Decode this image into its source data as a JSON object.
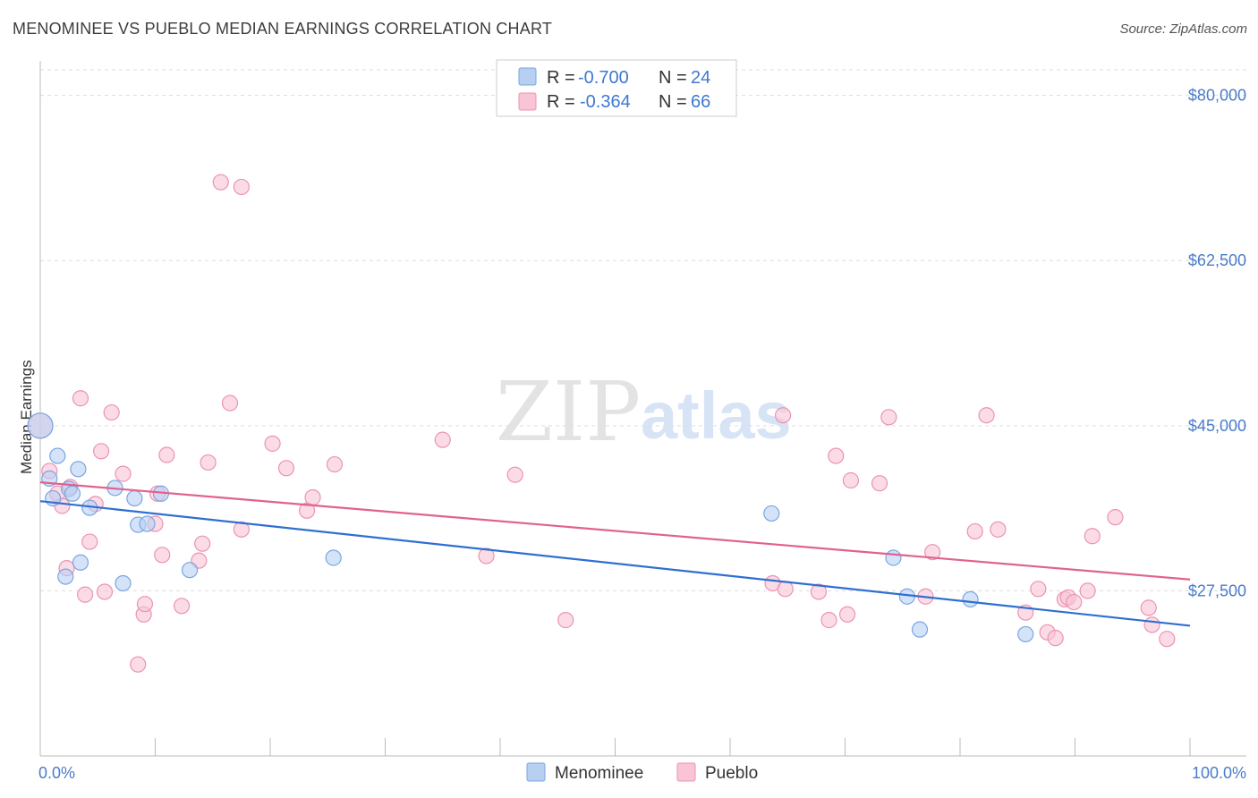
{
  "header": {
    "title": "MENOMINEE VS PUEBLO MEDIAN EARNINGS CORRELATION CHART",
    "source": "Source: ZipAtlas.com"
  },
  "watermark": {
    "zip": "ZIP",
    "atlas": "atlas"
  },
  "legend": {
    "rows": [
      {
        "r_label": "R =",
        "r_value": "-0.700",
        "n_label": "N =",
        "n_value": "24"
      },
      {
        "r_label": "R =",
        "r_value": "-0.364",
        "n_label": "N =",
        "n_value": "66"
      }
    ]
  },
  "bottom_legend": {
    "menominee": "Menominee",
    "pueblo": "Pueblo"
  },
  "colors": {
    "menominee_fill": "#b7d0f2",
    "menominee_stroke": "#7aa6e3",
    "menominee_line": "#2f6fd1",
    "pueblo_fill": "#f9c4d6",
    "pueblo_stroke": "#ec93b1",
    "pueblo_line": "#e0628d",
    "tick_text": "#4a7cc9",
    "grid": "#dddddd"
  },
  "chart_data": {
    "type": "scatter",
    "title": "MENOMINEE VS PUEBLO MEDIAN EARNINGS CORRELATION CHART",
    "xlabel": "",
    "ylabel": "Median Earnings",
    "xlim": [
      0,
      100
    ],
    "ylim": [
      10000,
      83000
    ],
    "x_tick_labels": [
      "0.0%",
      "100.0%"
    ],
    "y_ticks": [
      27500,
      45000,
      62500,
      80000
    ],
    "y_tick_labels": [
      "$27,500",
      "$45,000",
      "$62,500",
      "$80,000"
    ],
    "grid": true,
    "series": [
      {
        "name": "Menominee",
        "r": -0.7,
        "n": 24,
        "trend": {
          "x": [
            0,
            100
          ],
          "y": [
            37000,
            23800
          ]
        },
        "points": [
          {
            "x": 0.0,
            "y": 45000,
            "big": true
          },
          {
            "x": 0.8,
            "y": 39400
          },
          {
            "x": 1.1,
            "y": 37300
          },
          {
            "x": 1.5,
            "y": 41800
          },
          {
            "x": 2.2,
            "y": 29000
          },
          {
            "x": 2.5,
            "y": 38300
          },
          {
            "x": 2.8,
            "y": 37800
          },
          {
            "x": 3.3,
            "y": 40400
          },
          {
            "x": 3.5,
            "y": 30500
          },
          {
            "x": 4.3,
            "y": 36300
          },
          {
            "x": 6.5,
            "y": 38400
          },
          {
            "x": 7.2,
            "y": 28300
          },
          {
            "x": 8.2,
            "y": 37300
          },
          {
            "x": 8.5,
            "y": 34500
          },
          {
            "x": 9.3,
            "y": 34600
          },
          {
            "x": 10.5,
            "y": 37800
          },
          {
            "x": 13.0,
            "y": 29700
          },
          {
            "x": 25.5,
            "y": 31000
          },
          {
            "x": 63.6,
            "y": 35700
          },
          {
            "x": 74.2,
            "y": 31000
          },
          {
            "x": 75.4,
            "y": 26900
          },
          {
            "x": 76.5,
            "y": 23400
          },
          {
            "x": 80.9,
            "y": 26600
          },
          {
            "x": 85.7,
            "y": 22900
          }
        ]
      },
      {
        "name": "Pueblo",
        "r": -0.364,
        "n": 66,
        "trend": {
          "x": [
            0,
            100
          ],
          "y": [
            39000,
            28700
          ]
        },
        "points": [
          {
            "x": 0.0,
            "y": 45000,
            "big": true
          },
          {
            "x": 0.8,
            "y": 40200
          },
          {
            "x": 1.5,
            "y": 37800
          },
          {
            "x": 1.9,
            "y": 36500
          },
          {
            "x": 2.3,
            "y": 29900
          },
          {
            "x": 2.6,
            "y": 38500
          },
          {
            "x": 3.5,
            "y": 47900
          },
          {
            "x": 3.9,
            "y": 27100
          },
          {
            "x": 4.3,
            "y": 32700
          },
          {
            "x": 4.8,
            "y": 36700
          },
          {
            "x": 5.3,
            "y": 42300
          },
          {
            "x": 5.6,
            "y": 27400
          },
          {
            "x": 6.2,
            "y": 46400
          },
          {
            "x": 7.2,
            "y": 39900
          },
          {
            "x": 8.5,
            "y": 19700
          },
          {
            "x": 9.0,
            "y": 25000
          },
          {
            "x": 9.1,
            "y": 26100
          },
          {
            "x": 10.0,
            "y": 34600
          },
          {
            "x": 10.2,
            "y": 37800
          },
          {
            "x": 10.6,
            "y": 31300
          },
          {
            "x": 11.0,
            "y": 41900
          },
          {
            "x": 12.3,
            "y": 25900
          },
          {
            "x": 13.8,
            "y": 30700
          },
          {
            "x": 14.1,
            "y": 32500
          },
          {
            "x": 14.6,
            "y": 41100
          },
          {
            "x": 15.7,
            "y": 70800
          },
          {
            "x": 16.5,
            "y": 47400
          },
          {
            "x": 17.5,
            "y": 70300
          },
          {
            "x": 17.5,
            "y": 34000
          },
          {
            "x": 20.2,
            "y": 43100
          },
          {
            "x": 21.4,
            "y": 40500
          },
          {
            "x": 23.2,
            "y": 36000
          },
          {
            "x": 23.7,
            "y": 37400
          },
          {
            "x": 25.6,
            "y": 40900
          },
          {
            "x": 35.0,
            "y": 43500
          },
          {
            "x": 38.8,
            "y": 31200
          },
          {
            "x": 41.3,
            "y": 39800
          },
          {
            "x": 45.7,
            "y": 24400
          },
          {
            "x": 63.7,
            "y": 28300
          },
          {
            "x": 64.6,
            "y": 46100
          },
          {
            "x": 64.8,
            "y": 27700
          },
          {
            "x": 67.7,
            "y": 27400
          },
          {
            "x": 68.6,
            "y": 24400
          },
          {
            "x": 69.2,
            "y": 41800
          },
          {
            "x": 70.2,
            "y": 25000
          },
          {
            "x": 70.5,
            "y": 39200
          },
          {
            "x": 73.0,
            "y": 38900
          },
          {
            "x": 73.8,
            "y": 45900
          },
          {
            "x": 77.0,
            "y": 26900
          },
          {
            "x": 77.6,
            "y": 31600
          },
          {
            "x": 81.3,
            "y": 33800
          },
          {
            "x": 82.3,
            "y": 46100
          },
          {
            "x": 83.3,
            "y": 34000
          },
          {
            "x": 85.7,
            "y": 25200
          },
          {
            "x": 86.8,
            "y": 27700
          },
          {
            "x": 87.6,
            "y": 23100
          },
          {
            "x": 88.3,
            "y": 22500
          },
          {
            "x": 89.1,
            "y": 26600
          },
          {
            "x": 89.4,
            "y": 26800
          },
          {
            "x": 89.9,
            "y": 26300
          },
          {
            "x": 91.1,
            "y": 27500
          },
          {
            "x": 91.5,
            "y": 33300
          },
          {
            "x": 93.5,
            "y": 35300
          },
          {
            "x": 96.4,
            "y": 25700
          },
          {
            "x": 96.7,
            "y": 23900
          },
          {
            "x": 98.0,
            "y": 22400
          }
        ]
      }
    ]
  }
}
